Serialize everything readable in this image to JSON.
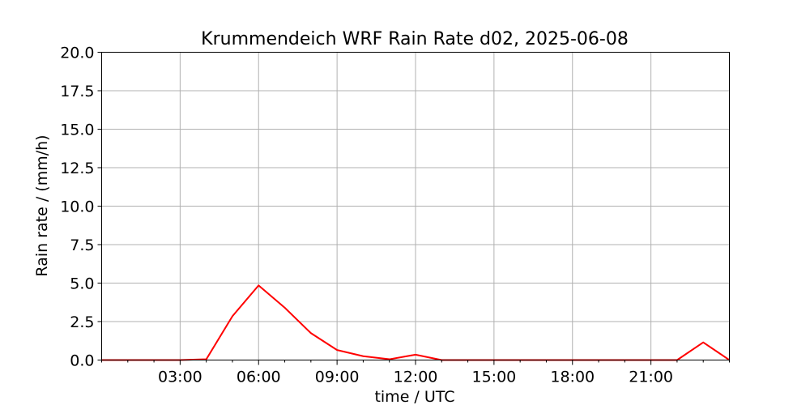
{
  "chart_data": {
    "type": "line",
    "title": "Krummendeich WRF Rain Rate d02, 2025-06-08",
    "xlabel": "time / UTC",
    "ylabel": "Rain rate / (mm/h)",
    "xlim": [
      0,
      24
    ],
    "ylim": [
      0,
      20
    ],
    "x_ticks": [
      3,
      6,
      9,
      12,
      15,
      18,
      21
    ],
    "x_tick_labels": [
      "03:00",
      "06:00",
      "09:00",
      "12:00",
      "15:00",
      "18:00",
      "21:00"
    ],
    "x_minor_ticks": [
      0,
      1,
      2,
      4,
      5,
      7,
      8,
      10,
      11,
      13,
      14,
      16,
      17,
      19,
      20,
      22,
      23,
      24
    ],
    "y_ticks": [
      0,
      2.5,
      5,
      7.5,
      10,
      12.5,
      15,
      17.5,
      20
    ],
    "y_tick_labels": [
      "0.0",
      "2.5",
      "5.0",
      "7.5",
      "10.0",
      "12.5",
      "15.0",
      "17.5",
      "20.0"
    ],
    "grid": true,
    "series": [
      {
        "color": "#ff0000",
        "x": [
          0,
          1,
          2,
          3,
          4,
          5,
          6,
          7,
          8,
          9,
          10,
          11,
          12,
          13,
          14,
          15,
          16,
          17,
          18,
          19,
          20,
          21,
          22,
          23,
          24
        ],
        "values": [
          0,
          0,
          0,
          0,
          0.05,
          2.85,
          4.85,
          3.4,
          1.75,
          0.65,
          0.25,
          0.05,
          0.35,
          0,
          0,
          0,
          0,
          0,
          0,
          0,
          0,
          0,
          0,
          1.15,
          0
        ]
      }
    ]
  }
}
